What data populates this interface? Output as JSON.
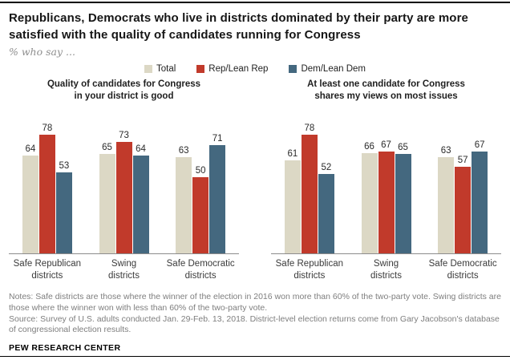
{
  "header": {
    "title_lines": [
      "Republicans, Democrats who live in districts dominated by their party are more",
      "satisfied with the quality of candidates running for Congress"
    ],
    "subtitle": "% who say ..."
  },
  "chart_data": {
    "type": "bar",
    "unit": "percent",
    "legend_position": "top-center",
    "grid": false,
    "ylim": [
      0,
      100
    ],
    "series": [
      {
        "key": "total",
        "name": "Total",
        "color": "#dcd8c5"
      },
      {
        "key": "rep-lean-rep",
        "name": "Rep/Lean Rep",
        "color": "#c13a2b"
      },
      {
        "key": "dem-lean-dem",
        "name": "Dem/Lean Dem",
        "color": "#44687f"
      }
    ],
    "categories": [
      "Safe Republican districts",
      "Swing districts",
      "Safe Democratic districts"
    ],
    "category_label_lines": [
      [
        "Safe Republican",
        "districts"
      ],
      [
        "Swing",
        "districts"
      ],
      [
        "Safe Democratic",
        "districts"
      ]
    ],
    "panels": [
      {
        "title": "Quality of candidates for Congress in your district is good",
        "title_lines": [
          "Quality of candidates for Congress",
          "in your district is good"
        ],
        "values": [
          [
            64,
            78,
            53
          ],
          [
            65,
            73,
            64
          ],
          [
            63,
            50,
            71
          ]
        ]
      },
      {
        "title": "At least one candidate for Congress shares my views on most issues",
        "title_lines": [
          "At least one candidate for Congress",
          "shares my views on most issues"
        ],
        "values": [
          [
            61,
            78,
            52
          ],
          [
            66,
            67,
            65
          ],
          [
            63,
            57,
            67
          ]
        ]
      }
    ]
  },
  "footer": {
    "notes": "Notes: Safe districts are those where the winner of the election in 2016 won more than 60% of the two-party vote. Swing districts are those where the winner won with less than 60% of the two-party vote.",
    "source": "Source: Survey of U.S. adults conducted Jan. 29-Feb. 13, 2018. District-level election returns come from Gary Jacobson's database of congressional election results.",
    "brand": "PEW RESEARCH CENTER"
  }
}
